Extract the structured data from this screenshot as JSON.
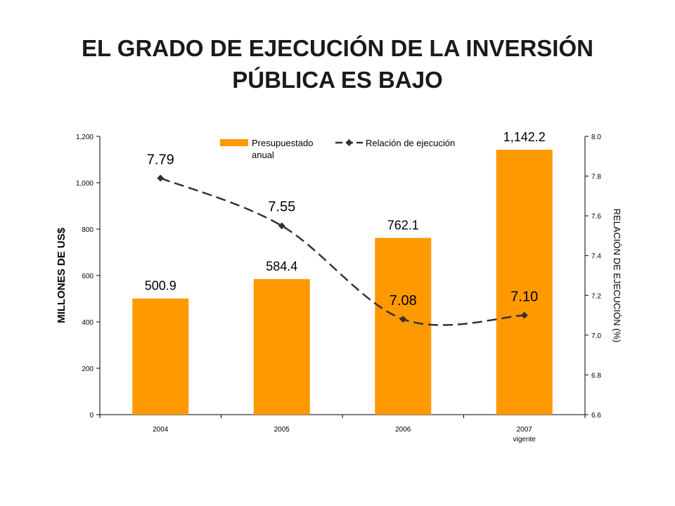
{
  "title_line1": "EL GRADO DE EJECUCIÓN DE LA INVERSIÓN",
  "title_line2": "PÚBLICA ES BAJO",
  "colors": {
    "bar": "#FF9900",
    "line": "#333333",
    "text": "#000000"
  },
  "chart_data": {
    "type": "bar",
    "categories": [
      "2004",
      "2005",
      "2006",
      "2007"
    ],
    "category_sublabels": [
      "",
      "",
      "",
      "vigente"
    ],
    "series": [
      {
        "name": "Presupuestado anual",
        "type": "bar",
        "axis": "left",
        "values": [
          500.9,
          584.4,
          762.1,
          1142.2
        ],
        "data_labels": [
          "500.9",
          "584.4",
          "762.1",
          "1,142.2"
        ]
      },
      {
        "name": "Relación de ejecución",
        "type": "line",
        "axis": "right",
        "values": [
          7.79,
          7.55,
          7.08,
          7.1
        ],
        "data_labels": [
          "7.79",
          "7.55",
          "7.08",
          "7.10"
        ]
      }
    ],
    "legend_labels": [
      "Presupuestado",
      "anual",
      "Relación de ejecución"
    ],
    "ylabel": "MILLONES DE US$",
    "y2label": "RELACIÓN DE EJECUCIÓN (%)",
    "ylim": [
      0,
      1200
    ],
    "y2lim": [
      6.6,
      8.0
    ],
    "yticks": [
      "0",
      "200",
      "400",
      "600",
      "800",
      "1,000",
      "1,200"
    ],
    "y2ticks": [
      "6.6",
      "6.8",
      "7.0",
      "7.2",
      "7.4",
      "7.6",
      "7.8",
      "8.0"
    ],
    "legend_position": "top",
    "grid": false
  }
}
